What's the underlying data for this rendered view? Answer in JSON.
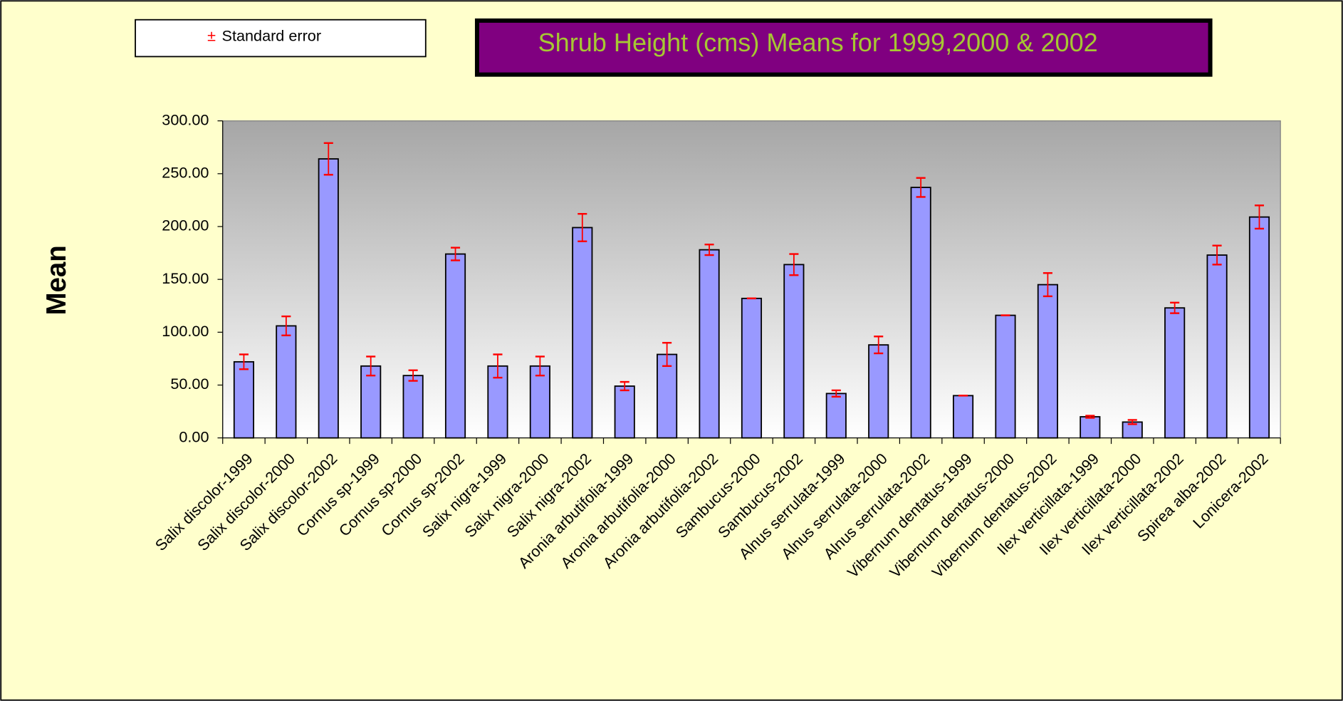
{
  "chart_data": {
    "type": "bar",
    "title": "Shrub Height (cms) Means for 1999,2000 & 2002",
    "legend_label": "Standard error",
    "legend_symbol": "±",
    "ylabel": "Mean",
    "categories": [
      "Salix discolor-1999",
      "Salix discolor-2000",
      "Salix discolor-2002",
      "Cornus sp-1999",
      "Cornus sp-2000",
      "Cornus sp-2002",
      "Salix nigra-1999",
      "Salix nigra-2000",
      "Salix nigra-2002",
      "Aronia arbutifolia-1999",
      "Aronia arbutifolia-2000",
      "Aronia arbutifolia-2002",
      "Sambucus-2000",
      "Sambucus-2002",
      "Alnus serrulata-1999",
      "Alnus serrulata-2000",
      "Alnus serrulata-2002",
      "Vibernum dentatus-1999",
      "Vibernum dentatus-2000",
      "Vibernum dentatus-2002",
      "Ilex verticillata-1999",
      "Ilex verticillata-2000",
      "Ilex verticillata-2002",
      "Spirea alba-2002",
      "Lonicera-2002"
    ],
    "values": [
      72,
      106,
      264,
      68,
      59,
      174,
      68,
      68,
      199,
      49,
      79,
      178,
      132,
      164,
      42,
      88,
      237,
      40,
      116,
      145,
      20,
      15,
      123,
      173,
      209
    ],
    "errors": [
      7,
      9,
      15,
      9,
      5,
      6,
      11,
      9,
      13,
      4,
      11,
      5,
      0,
      10,
      3,
      8,
      9,
      0,
      0,
      11,
      1,
      2,
      5,
      9,
      11
    ],
    "color": "#9999ff",
    "error_color": "#ff0000",
    "ylim": [
      0,
      300
    ],
    "yticks": [
      {
        "value": 0,
        "label": "0.00"
      },
      {
        "value": 50,
        "label": "50.00"
      },
      {
        "value": 100,
        "label": "100.00"
      },
      {
        "value": 150,
        "label": "150.00"
      },
      {
        "value": 200,
        "label": "200.00"
      },
      {
        "value": 250,
        "label": "250.00"
      },
      {
        "value": 300,
        "label": "300.00"
      }
    ]
  }
}
